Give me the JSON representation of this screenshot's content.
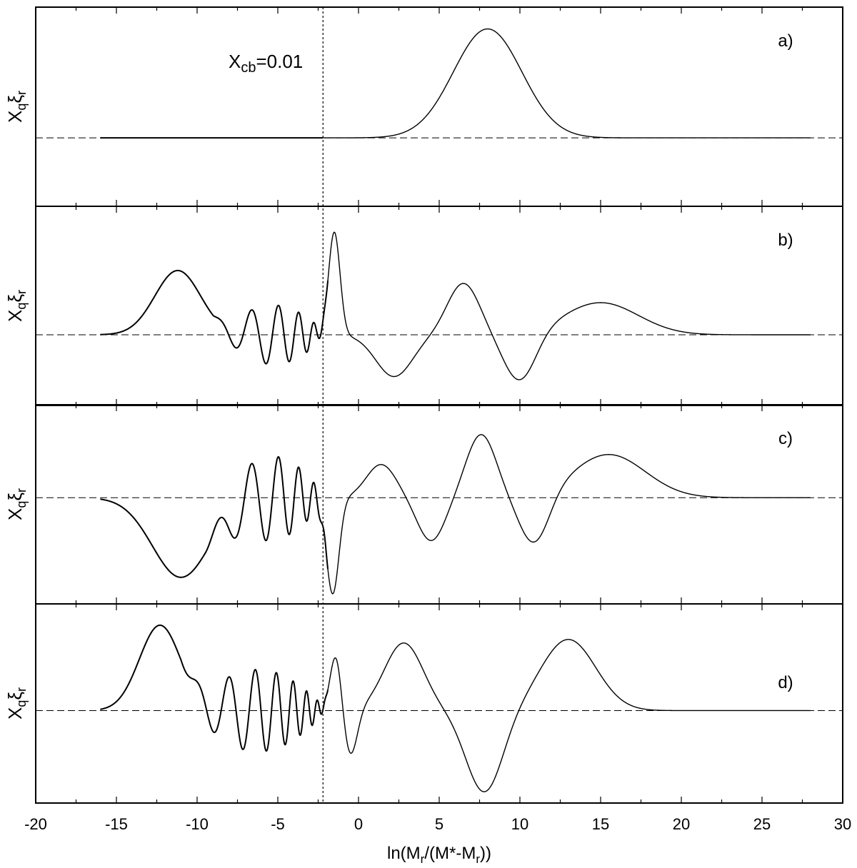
{
  "chart_data": {
    "type": "line",
    "xlabel": "ln(M_r/(M*-M_r))",
    "xlim": [
      -20,
      30
    ],
    "x_ticks": [
      "-20",
      "-15",
      "-10",
      "-5",
      "0",
      "5",
      "10",
      "15",
      "20",
      "25",
      "30"
    ],
    "ylabel": "X_q ξ_r",
    "grid": false,
    "reference_line_x": -2.2,
    "annotation": "X_cb=0.01",
    "panels": [
      {
        "label": "a)",
        "x_range": [
          -16,
          28
        ],
        "y_range": [
          -1.1,
          2.1
        ],
        "inner_region": [
          -16,
          -2.2
        ],
        "components": [
          {
            "kind": "gauss",
            "amp": 1.75,
            "center": 8.0,
            "width": 3.0
          }
        ]
      },
      {
        "label": "b)",
        "x_range": [
          -16,
          28
        ],
        "y_range": [
          -1.1,
          2.0
        ],
        "inner_region": [
          -16,
          -1.9
        ],
        "components": [
          {
            "kind": "gauss",
            "amp": 1.0,
            "center": -11.2,
            "width": 2.0
          },
          {
            "kind": "osc",
            "amp": 0.4,
            "x_start": -9.0,
            "x_end": -1.9,
            "ref": -1.9,
            "k": 22.0,
            "phase": 0.0,
            "amp_growth": 0.3
          },
          {
            "kind": "gauss",
            "amp": 1.6,
            "center": -1.5,
            "width": 0.5
          },
          {
            "kind": "gauss",
            "amp": -0.65,
            "center": 2.2,
            "width": 1.6
          },
          {
            "kind": "gauss",
            "amp": 0.8,
            "center": 6.5,
            "width": 1.4
          },
          {
            "kind": "gauss",
            "amp": -0.75,
            "center": 10.0,
            "width": 1.4
          },
          {
            "kind": "gauss",
            "amp": 0.5,
            "center": 15.0,
            "width": 3.3
          }
        ]
      },
      {
        "label": "c)",
        "x_range": [
          -16,
          28
        ],
        "y_range": [
          -1.6,
          1.4
        ],
        "inner_region": [
          -16,
          -1.9
        ],
        "components": [
          {
            "kind": "gauss",
            "amp": -1.2,
            "center": -11.0,
            "width": 2.5
          },
          {
            "kind": "osc",
            "amp": 0.55,
            "x_start": -9.5,
            "x_end": -1.9,
            "ref": -1.9,
            "k": 22.0,
            "phase": 0.0,
            "amp_growth": 0.3
          },
          {
            "kind": "gauss",
            "amp": -1.45,
            "center": -1.6,
            "width": 0.55
          },
          {
            "kind": "gauss",
            "amp": 0.5,
            "center": 1.4,
            "width": 1.3
          },
          {
            "kind": "gauss",
            "amp": -0.65,
            "center": 4.5,
            "width": 1.2
          },
          {
            "kind": "gauss",
            "amp": 0.95,
            "center": 7.6,
            "width": 1.3
          },
          {
            "kind": "gauss",
            "amp": -0.75,
            "center": 10.9,
            "width": 1.3
          },
          {
            "kind": "gauss",
            "amp": 0.65,
            "center": 15.5,
            "width": 3.2
          }
        ]
      },
      {
        "label": "d)",
        "x_range": [
          -16,
          28
        ],
        "y_range": [
          -1.3,
          1.5
        ],
        "inner_region": [
          -16,
          -1.9
        ],
        "components": [
          {
            "kind": "gauss",
            "amp": 1.2,
            "center": -12.3,
            "width": 1.8
          },
          {
            "kind": "osc",
            "amp": 0.5,
            "x_start": -11.0,
            "x_end": -1.9,
            "ref": -1.9,
            "k": 28.0,
            "phase": 0.0,
            "amp_growth": 0.3
          },
          {
            "kind": "gauss",
            "amp": 0.8,
            "center": -1.4,
            "width": 0.5
          },
          {
            "kind": "gauss",
            "amp": -0.65,
            "center": -0.5,
            "width": 0.6
          },
          {
            "kind": "gauss",
            "amp": 0.95,
            "center": 2.8,
            "width": 1.7
          },
          {
            "kind": "gauss",
            "amp": -1.15,
            "center": 7.8,
            "width": 1.6
          },
          {
            "kind": "gauss",
            "amp": 1.0,
            "center": 13.0,
            "width": 2.4
          }
        ]
      }
    ]
  }
}
